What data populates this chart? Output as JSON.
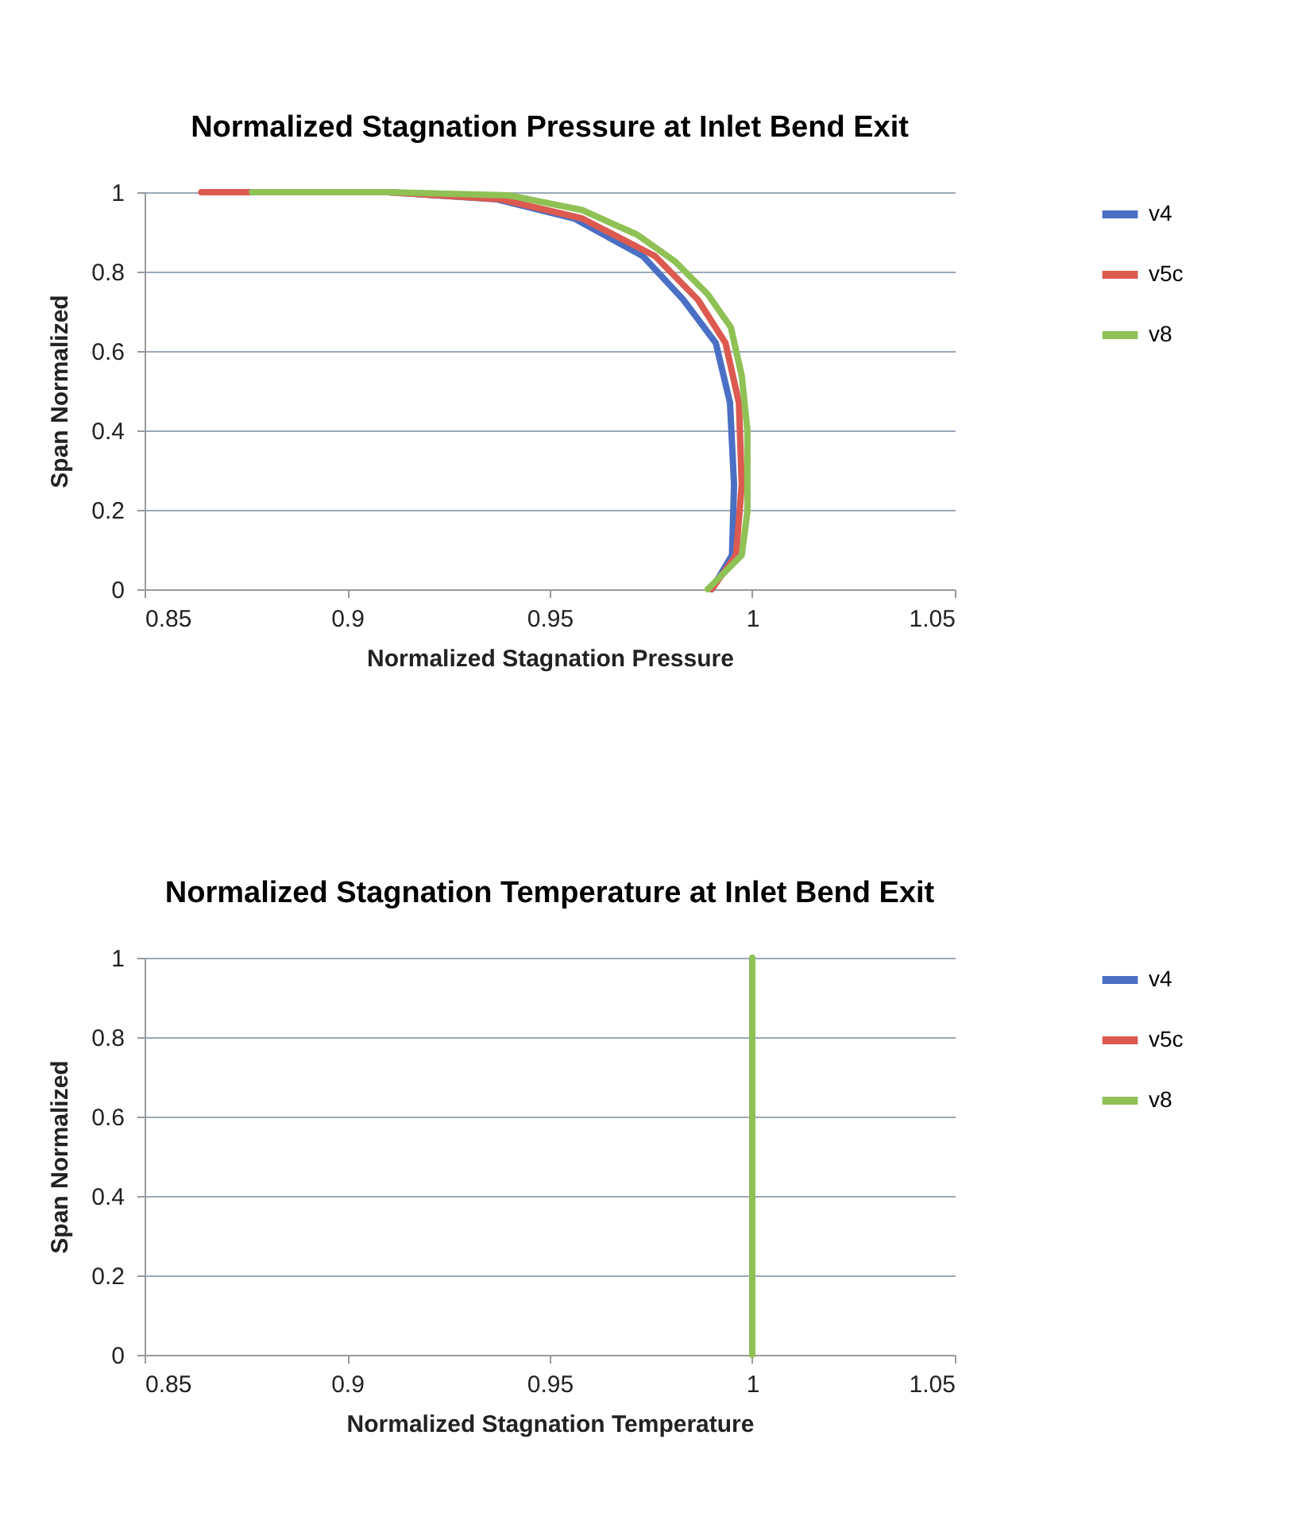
{
  "chart_data": [
    {
      "type": "line",
      "title": "Normalized Stagnation Pressure at Inlet Bend Exit",
      "xlabel": "Normalized Stagnation Pressure",
      "ylabel": "Span Normalized",
      "xlim": [
        0.85,
        1.05
      ],
      "xticks": [
        0.85,
        0.9,
        0.95,
        1,
        1.05
      ],
      "ylim": [
        0,
        1
      ],
      "yticks": [
        0,
        0.2,
        0.4,
        0.6,
        0.8,
        1
      ],
      "grid": "y",
      "legend": "right",
      "marker": "none",
      "line_style": "solid",
      "series": [
        {
          "name": "v4",
          "color": "#4a6fc4",
          "x": [
            0.99,
            0.995,
            0.9955,
            0.9945,
            0.991,
            0.983,
            0.973,
            0.956,
            0.937,
            0.91,
            null
          ],
          "values": [
            0,
            0.086,
            0.264,
            0.47,
            0.62,
            0.729,
            0.839,
            0.934,
            0.982,
            1,
            null
          ]
        },
        {
          "name": "v5c",
          "color": "#dc5a50",
          "x": [
            0.99,
            0.996,
            0.9974,
            0.9967,
            0.9934,
            0.9866,
            0.976,
            0.958,
            0.938,
            0.91,
            0.864
          ],
          "values": [
            0,
            0.086,
            0.264,
            0.47,
            0.62,
            0.729,
            0.839,
            0.934,
            0.982,
            1,
            1
          ]
        },
        {
          "name": "v8",
          "color": "#8fc155",
          "x": [
            0.989,
            0.9974,
            0.9988,
            0.9988,
            0.9974,
            0.9947,
            0.989,
            0.981,
            0.9716,
            0.958,
            0.94,
            0.9105,
            0.8765
          ],
          "values": [
            0,
            0.086,
            0.195,
            0.4,
            0.538,
            0.66,
            0.743,
            0.825,
            0.893,
            0.955,
            0.992,
            1,
            1
          ]
        }
      ]
    },
    {
      "type": "line",
      "title": "Normalized Stagnation Temperature at Inlet Bend Exit",
      "xlabel": "Normalized Stagnation Temperature",
      "ylabel": "Span Normalized",
      "xlim": [
        0.85,
        1.05
      ],
      "xticks": [
        0.85,
        0.9,
        0.95,
        1,
        1.05
      ],
      "ylim": [
        0,
        1
      ],
      "yticks": [
        0,
        0.2,
        0.4,
        0.6,
        0.8,
        1
      ],
      "grid": "y",
      "legend": "right",
      "marker": "none",
      "line_style": "solid",
      "series": [
        {
          "name": "v4",
          "color": "#4a6fc4",
          "x": [
            null,
            null
          ],
          "values": [
            null,
            null
          ]
        },
        {
          "name": "v5c",
          "color": "#dc5a50",
          "x": [
            null,
            null
          ],
          "values": [
            null,
            null
          ]
        },
        {
          "name": "v8",
          "color": "#8fc155",
          "x": [
            1,
            1
          ],
          "values": [
            0,
            1
          ]
        }
      ]
    }
  ]
}
